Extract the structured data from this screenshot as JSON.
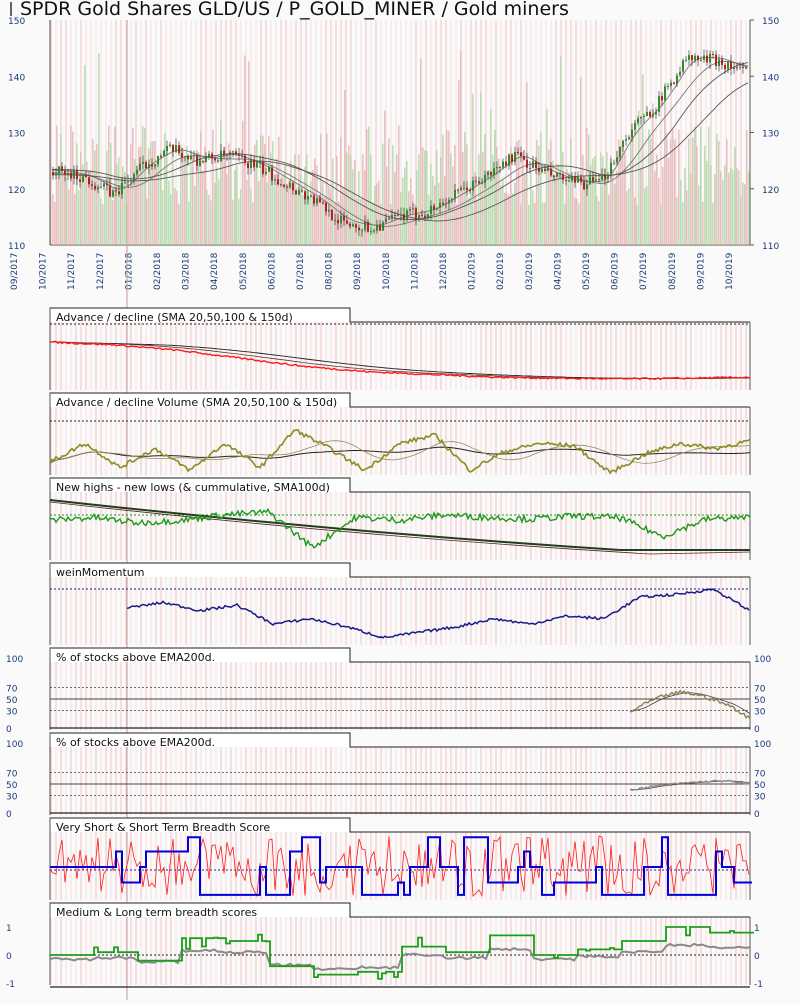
{
  "title": "SPDR Gold Shares GLD/US / P_GOLD_MINER / Gold miners",
  "colors": {
    "up": "#2e8b2e",
    "down": "#b22222",
    "ad_line": "#ff1a1a",
    "adv_line": "#8b8b23",
    "nhnl_line": "#1a9a1a",
    "wein": "#1a1a8c",
    "pct_line": "#8b8050",
    "pct2_line": "#8a8a8a",
    "breadth_blue": "#0000dd",
    "breadth_red": "#ff1a1a",
    "score_green": "#19a019",
    "score_gray": "#8a8a8a",
    "axis_text": "#1a3a7a"
  },
  "chart_data": [
    {
      "type": "candlestick",
      "panel": "price",
      "title": "SPDR Gold Shares GLD/US / P_GOLD_MINER / Gold miners",
      "y_ticks": [
        110,
        120,
        130,
        140,
        150
      ],
      "ylim": [
        110,
        150
      ],
      "x_ticks": [
        "09/2017",
        "10/2017",
        "11/2017",
        "12/2017",
        "01/2018",
        "02/2018",
        "03/2018",
        "04/2018",
        "05/2018",
        "06/2018",
        "07/2018",
        "08/2018",
        "09/2018",
        "10/2018",
        "11/2018",
        "12/2018",
        "01/2019",
        "02/2019",
        "03/2019",
        "04/2019",
        "05/2019",
        "06/2019",
        "07/2019",
        "08/2019",
        "09/2019",
        "10/2019"
      ],
      "price_path": {
        "months": [
          "10/2017",
          "11/2017",
          "12/2017",
          "01/2018",
          "02/2018",
          "03/2018",
          "04/2018",
          "05/2018",
          "06/2018",
          "07/2018",
          "08/2018",
          "09/2018",
          "10/2018",
          "11/2018",
          "12/2018",
          "01/2019",
          "02/2019",
          "03/2019",
          "04/2019",
          "05/2019",
          "06/2019",
          "07/2019",
          "08/2019",
          "09/2019",
          "10/2019"
        ],
        "values": [
          123,
          122,
          119,
          124,
          127,
          125,
          126,
          124,
          121,
          118,
          114,
          113,
          115,
          116,
          119,
          122,
          126,
          123,
          121,
          121,
          130,
          135,
          143,
          143,
          141
        ]
      },
      "overlays": [
        "SMA 20",
        "SMA 50",
        "SMA 100",
        "SMA 150"
      ]
    },
    {
      "type": "line",
      "panel": "ad",
      "title": "Advance / decline (SMA 20,50,100 & 150d)",
      "trend": [
        0.15,
        0.2,
        0.3,
        0.45,
        0.6,
        0.7,
        0.75,
        0.8,
        0.82,
        0.83,
        0.82,
        0.8
      ]
    },
    {
      "type": "line",
      "panel": "adv",
      "title": "Advance / decline Volume (SMA 20,50,100 & 150d)",
      "trend": [
        0.2,
        0.55,
        0.1,
        0.45,
        0.05,
        0.55,
        0.1,
        0.8,
        0.45,
        0.05,
        0.55,
        0.7,
        0.05,
        0.4,
        0.55,
        0.5,
        0.0,
        0.35,
        0.55,
        0.45,
        0.6
      ]
    },
    {
      "type": "line",
      "panel": "nhnl",
      "title": "New highs - new lows (& cummulative, SMA100d)",
      "trend": [
        0.7,
        0.75,
        0.65,
        0.7,
        0.8,
        0.85,
        0.2,
        0.75,
        0.7,
        0.8,
        0.75,
        0.72,
        0.78,
        0.75,
        0.4,
        0.72,
        0.75
      ]
    },
    {
      "type": "line",
      "panel": "wein",
      "title": "weinMomentum",
      "trend": [
        0.65,
        0.75,
        0.6,
        0.7,
        0.35,
        0.45,
        0.3,
        0.1,
        0.2,
        0.3,
        0.45,
        0.35,
        0.5,
        0.45,
        0.85,
        0.9,
        1.0,
        0.6
      ]
    },
    {
      "type": "line",
      "panel": "pct1",
      "title": "% of stocks above EMA200d.",
      "y_ticks": [
        0,
        30,
        50,
        70,
        100
      ],
      "ylim": [
        0,
        100
      ],
      "trend": [
        35,
        55,
        70,
        78,
        72,
        60,
        45,
        20
      ]
    },
    {
      "type": "line",
      "panel": "pct2",
      "title": "% of stocks above EMA200d.",
      "y_ticks": [
        0,
        30,
        50,
        70,
        100
      ],
      "ylim": [
        0,
        100
      ],
      "trend": [
        50,
        58,
        64,
        68,
        70,
        62
      ]
    },
    {
      "type": "line",
      "panel": "breadth",
      "title": "Very Short & Short Term Breadth Score"
    },
    {
      "type": "line",
      "panel": "score",
      "title": "Medium & Long term breadth scores",
      "y_ticks": [
        -1,
        0,
        1
      ],
      "ylim": [
        -1,
        1
      ],
      "trend": [
        0.0,
        0.1,
        -0.2,
        0.6,
        0.5,
        -0.4,
        -0.7,
        -0.6,
        0.3,
        0.1,
        0.7,
        0.0,
        0.2,
        0.5,
        1.0,
        0.8,
        0.9
      ]
    }
  ]
}
